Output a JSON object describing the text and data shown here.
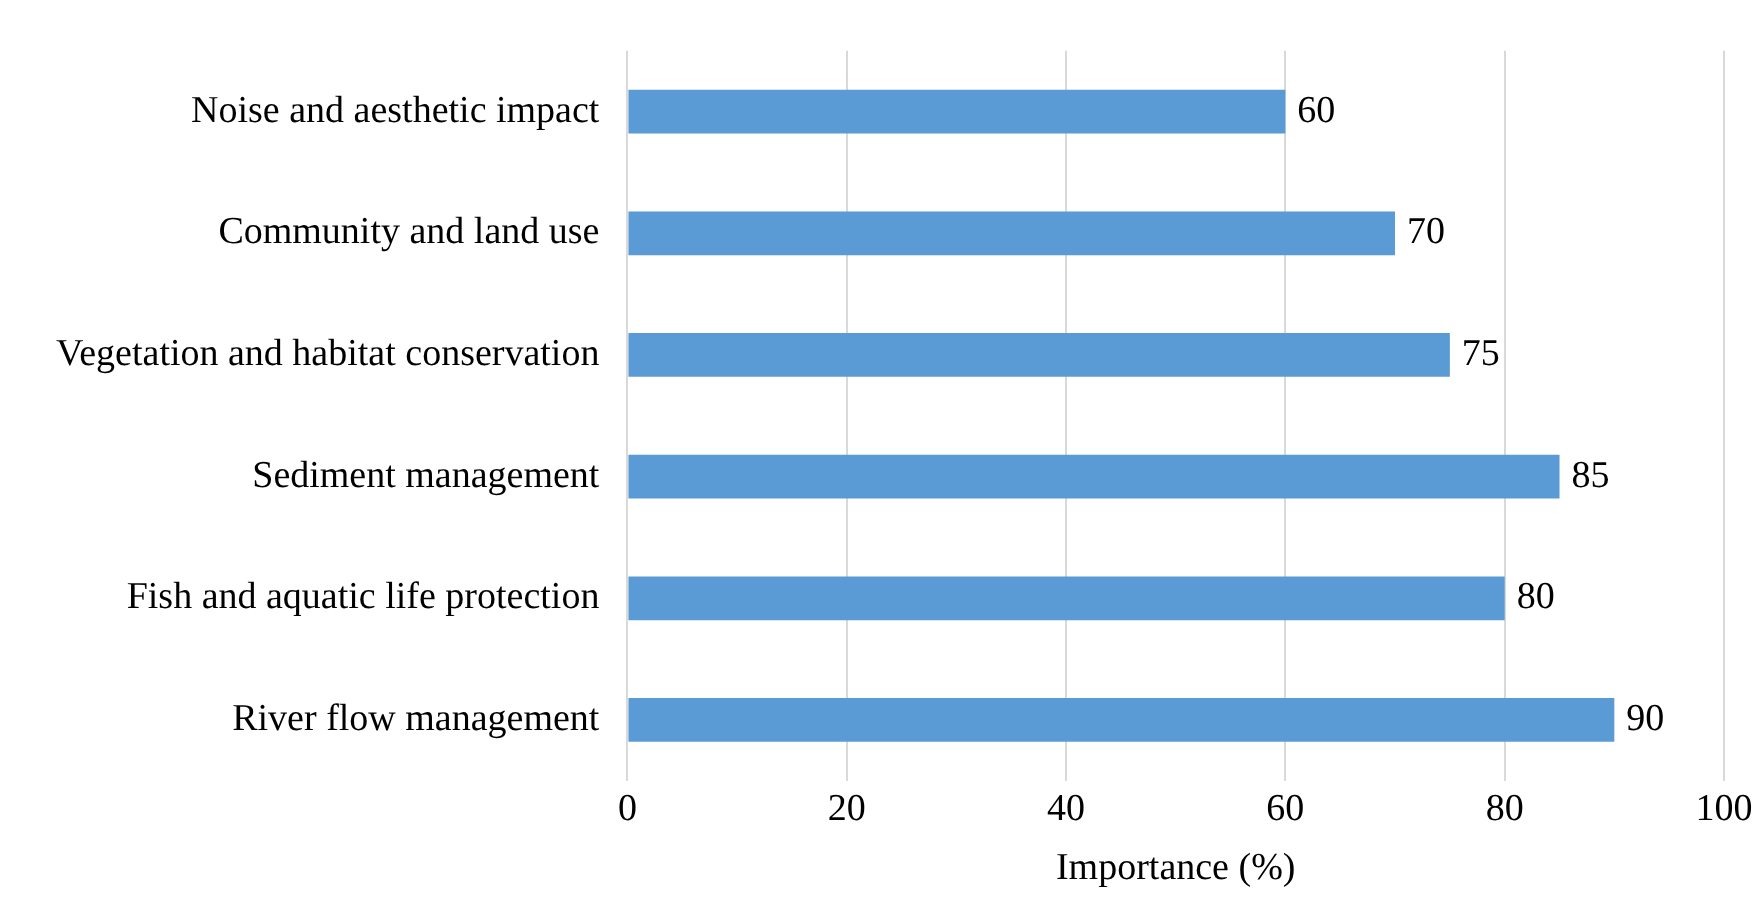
{
  "chart_data": {
    "type": "bar",
    "orientation": "horizontal",
    "xlabel": "Importance (%)",
    "categories": [
      "Noise and aesthetic impact",
      "Community and land use",
      "Vegetation and habitat conservation",
      "Sediment management",
      "Fish and aquatic life protection",
      "River flow management"
    ],
    "values": [
      60,
      70,
      75,
      85,
      80,
      90
    ],
    "color": "#5b9bd5",
    "xlim": [
      0,
      100
    ],
    "xticks": [
      0,
      20,
      40,
      60,
      80,
      100
    ],
    "grid": "x",
    "data_labels": true,
    "legend": false
  }
}
